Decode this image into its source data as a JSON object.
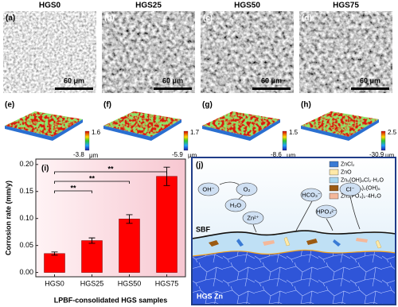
{
  "sem_panels": [
    {
      "title": "HGS0",
      "label": "(a)",
      "scale_bar": "60 μm"
    },
    {
      "title": "HGS25",
      "label": "(b)",
      "scale_bar": "60 μm"
    },
    {
      "title": "HGS50",
      "label": "(c)",
      "scale_bar": "60 μm"
    },
    {
      "title": "HGS75",
      "label": "(d)",
      "scale_bar": "60 μm"
    }
  ],
  "surface_maps": [
    {
      "label": "(e)",
      "max": 1.6,
      "min": -3.8,
      "unit": "μm"
    },
    {
      "label": "(f)",
      "max": 1.7,
      "min": -5.9,
      "unit": "μm"
    },
    {
      "label": "(g)",
      "max": 1.5,
      "min": -8.6,
      "unit": "μm"
    },
    {
      "label": "(h)",
      "max": 2.5,
      "min": -30.9,
      "unit": "μm"
    }
  ],
  "chart_data": {
    "type": "bar",
    "panel_label": "(i)",
    "categories": [
      "HGS0",
      "HGS25",
      "HGS50",
      "HGS75"
    ],
    "values": [
      0.035,
      0.059,
      0.099,
      0.178
    ],
    "errors": [
      0.003,
      0.005,
      0.008,
      0.017
    ],
    "color": "#ff0000",
    "y_label": "Corrosion rate (mm/y)",
    "x_label": "LPBF-consolidated HGS samples",
    "ylim": [
      -0.008,
      0.21
    ],
    "yticks": [
      {
        "value": 0,
        "label": "0.00"
      },
      {
        "value": 0.05,
        "label": "0.05"
      },
      {
        "value": 0.1,
        "label": "0.10"
      },
      {
        "value": 0.15,
        "label": "0.15"
      },
      {
        "value": 0.2,
        "label": "0.20"
      }
    ],
    "significance": [
      {
        "label": "**",
        "from": "HGS0",
        "to": "HGS75"
      },
      {
        "label": "**",
        "from": "HGS0",
        "to": "HGS50"
      },
      {
        "label": "**",
        "from": "HGS0",
        "to": "HGS25"
      }
    ]
  },
  "schematic": {
    "label": "(j)",
    "legend": [
      {
        "name": "ZnCl₂",
        "color": "#3a7bd5"
      },
      {
        "name": "ZnO",
        "color": "#ffe9a8"
      },
      {
        "name": "Zn₅(OH)₈Cl₂·H₂O",
        "color": "#a9d8f0"
      },
      {
        "name": "Zn₅(CO₃)₂(OH)₆",
        "color": "#9c5a12"
      },
      {
        "name": "Zn₃(PO₄)₂·4H₂O",
        "color": "#f4b89a"
      }
    ],
    "ions": [
      "OH⁻",
      "O₂",
      "H₂O",
      "Zn²⁺",
      "HCO₃⁻",
      "HPO₄²⁻",
      "Cl⁻"
    ],
    "solution": "SBF",
    "substrate": "HGS Zn"
  }
}
